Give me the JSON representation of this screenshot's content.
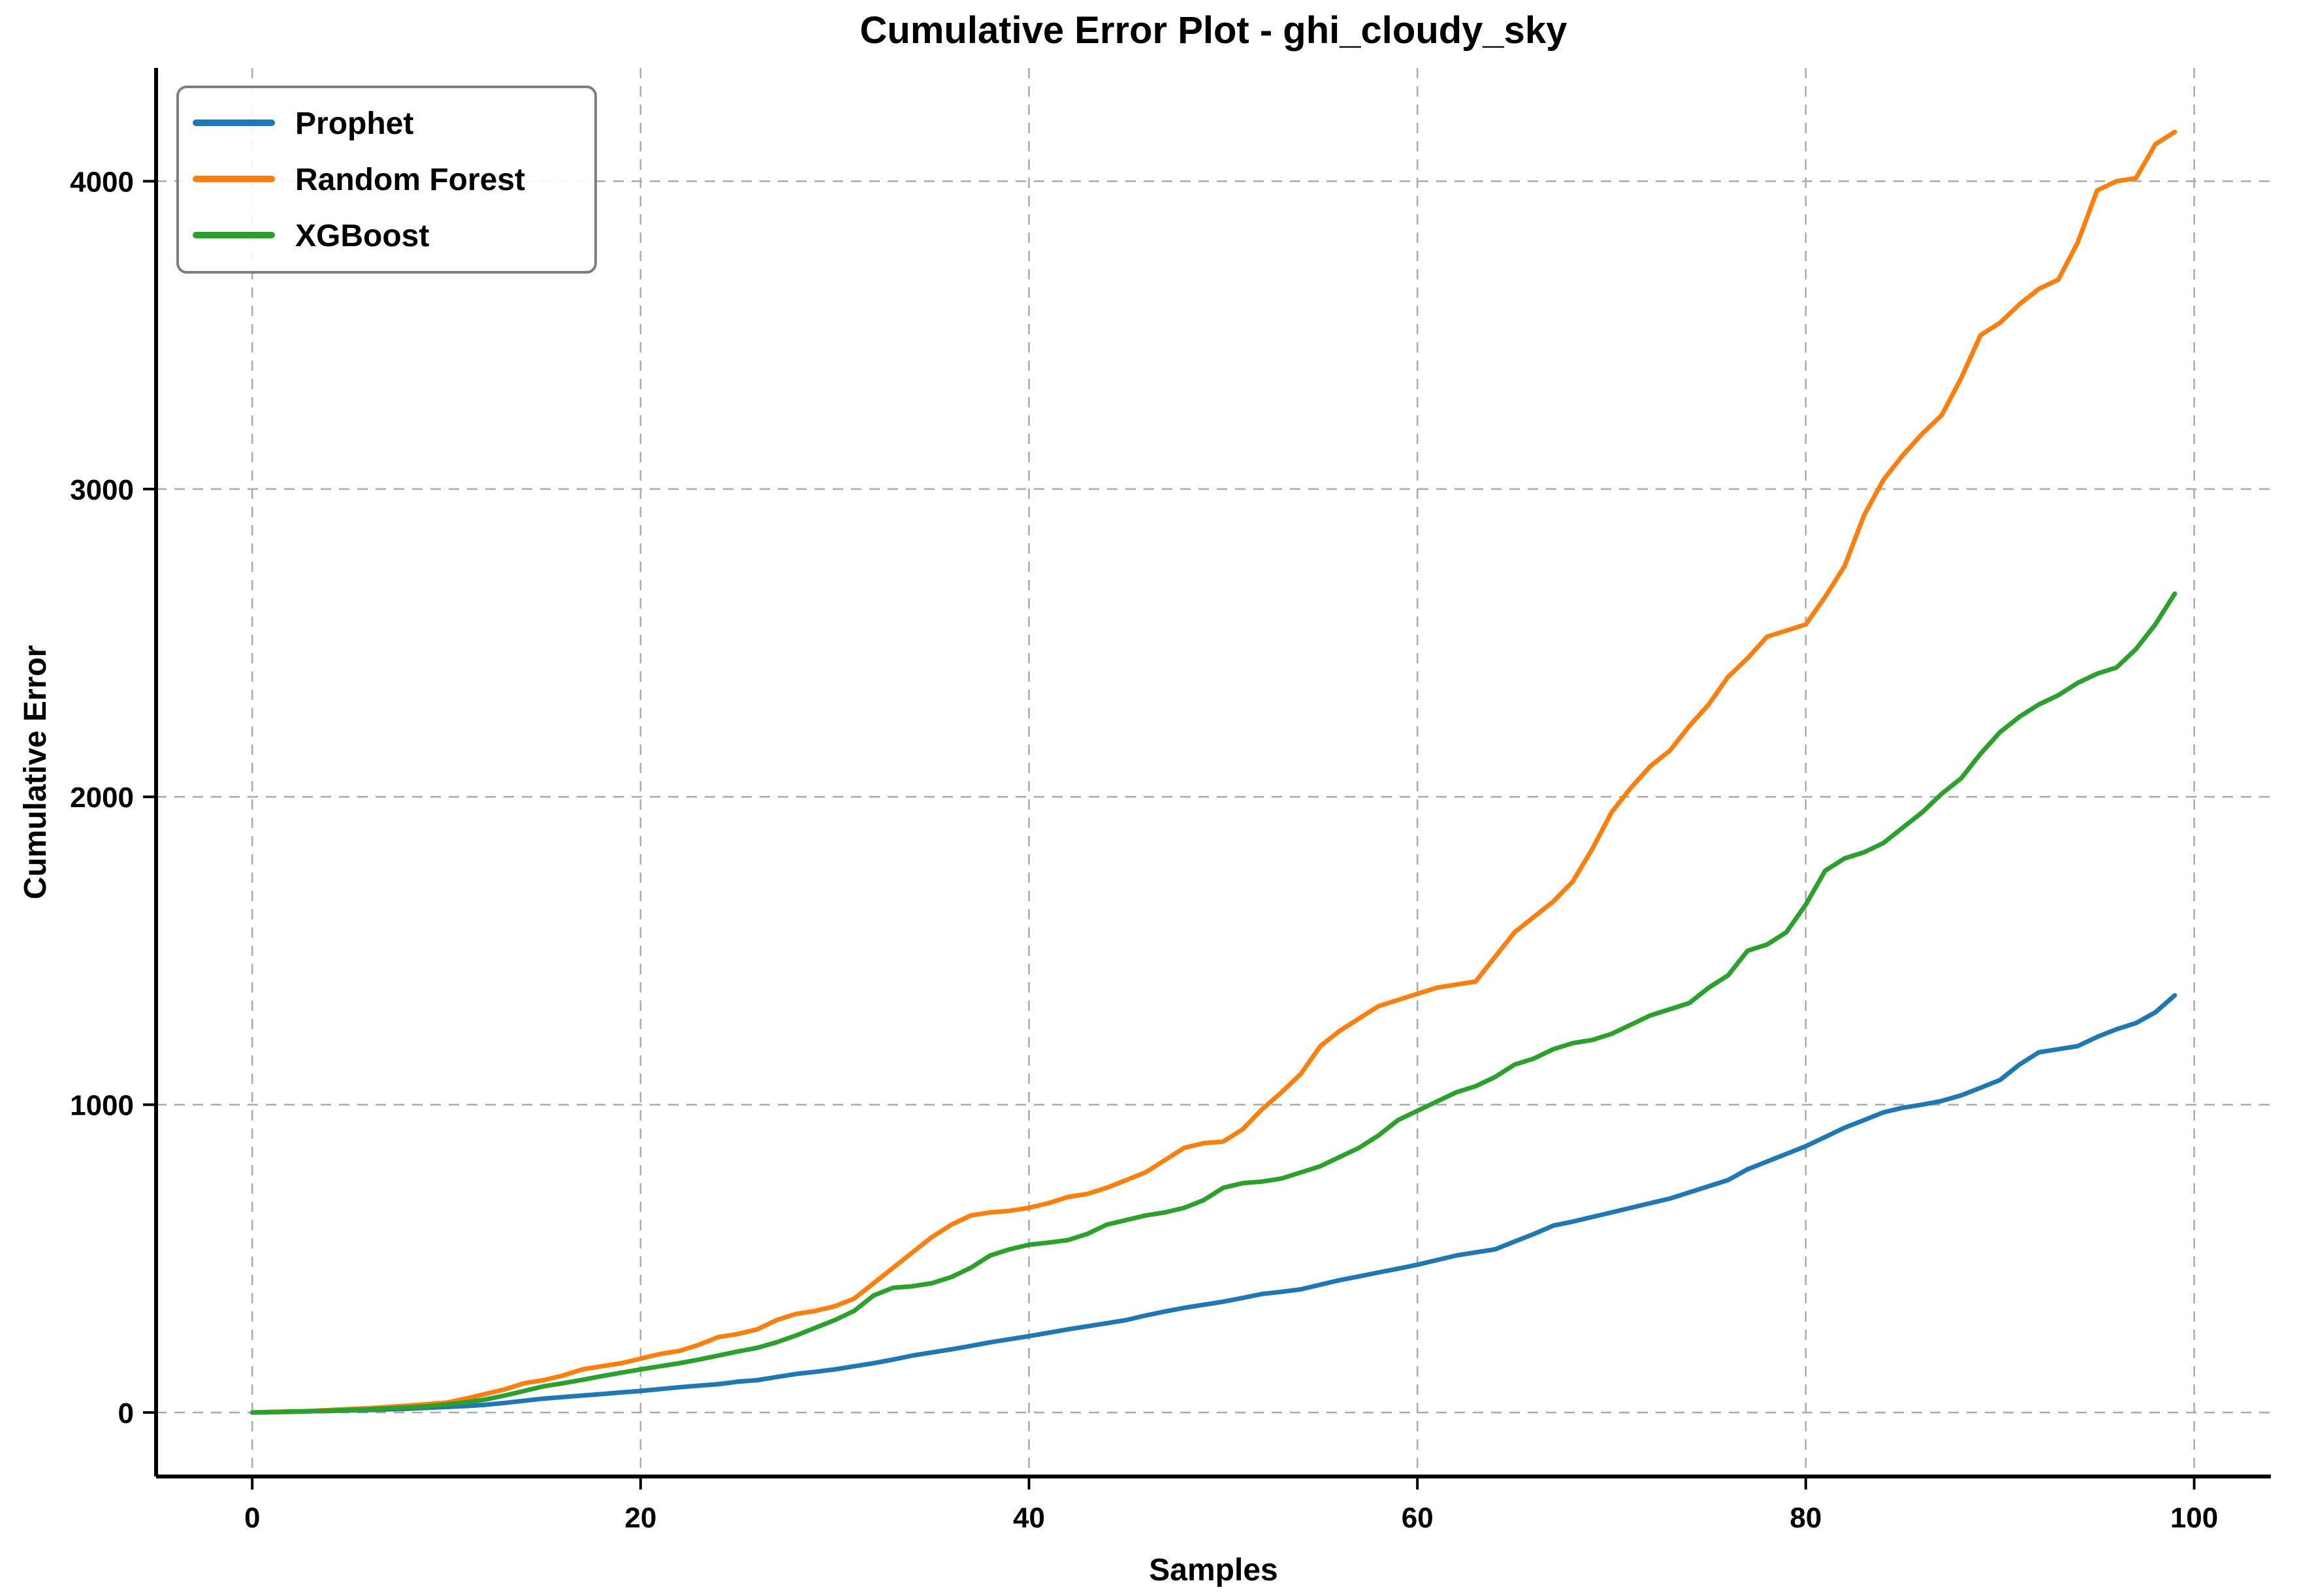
{
  "chart_data": {
    "type": "line",
    "title": "Cumulative Error Plot - ghi_cloudy_sky",
    "xlabel": "Samples",
    "ylabel": "Cumulative Error",
    "xlim": [
      -4.95,
      103.95
    ],
    "ylim": [
      -208,
      4368
    ],
    "xticks": [
      0,
      20,
      40,
      60,
      80,
      100
    ],
    "yticks": [
      0,
      1000,
      2000,
      3000,
      4000
    ],
    "grid": "both, dashed, light gray",
    "legend_position": "upper left",
    "x": [
      0,
      1,
      2,
      3,
      4,
      5,
      6,
      7,
      8,
      9,
      10,
      11,
      12,
      13,
      14,
      15,
      16,
      17,
      18,
      19,
      20,
      21,
      22,
      23,
      24,
      25,
      26,
      27,
      28,
      29,
      30,
      31,
      32,
      33,
      34,
      35,
      36,
      37,
      38,
      39,
      40,
      41,
      42,
      43,
      44,
      45,
      46,
      47,
      48,
      49,
      50,
      51,
      52,
      53,
      54,
      55,
      56,
      57,
      58,
      59,
      60,
      61,
      62,
      63,
      64,
      65,
      66,
      67,
      68,
      69,
      70,
      71,
      72,
      73,
      74,
      75,
      76,
      77,
      78,
      79,
      80,
      81,
      82,
      83,
      84,
      85,
      86,
      87,
      88,
      89,
      90,
      91,
      92,
      93,
      94,
      95,
      96,
      97,
      98,
      99
    ],
    "series": [
      {
        "name": "Prophet",
        "color": "#1f77b4",
        "values": [
          0,
          1,
          2,
          4,
          5,
          7,
          8,
          10,
          12,
          15,
          18,
          21,
          25,
          31,
          38,
          45,
          50,
          55,
          60,
          65,
          70,
          76,
          82,
          87,
          92,
          100,
          105,
          115,
          125,
          132,
          140,
          150,
          160,
          172,
          185,
          195,
          205,
          216,
          228,
          238,
          248,
          259,
          270,
          280,
          290,
          300,
          315,
          328,
          340,
          350,
          360,
          372,
          385,
          392,
          400,
          415,
          430,
          442,
          455,
          467,
          480,
          495,
          510,
          520,
          530,
          555,
          580,
          607,
          620,
          635,
          650,
          665,
          680,
          695,
          715,
          735,
          755,
          790,
          815,
          840,
          865,
          895,
          925,
          950,
          975,
          990,
          1000,
          1012,
          1030,
          1055,
          1080,
          1130,
          1170,
          1180,
          1190,
          1220,
          1245,
          1265,
          1300,
          1355
        ]
      },
      {
        "name": "Random Forest",
        "color": "#ff7f0e",
        "values": [
          0,
          2,
          3,
          5,
          8,
          11,
          14,
          18,
          22,
          27,
          32,
          45,
          60,
          75,
          95,
          105,
          120,
          140,
          150,
          160,
          175,
          190,
          200,
          220,
          245,
          255,
          270,
          300,
          320,
          330,
          345,
          370,
          420,
          470,
          520,
          570,
          610,
          640,
          650,
          655,
          665,
          680,
          700,
          710,
          730,
          755,
          780,
          820,
          860,
          875,
          880,
          920,
          985,
          1040,
          1100,
          1190,
          1240,
          1280,
          1320,
          1340,
          1360,
          1380,
          1390,
          1400,
          1480,
          1560,
          1610,
          1660,
          1725,
          1830,
          1950,
          2030,
          2100,
          2150,
          2230,
          2300,
          2390,
          2450,
          2520,
          2540,
          2560,
          2650,
          2750,
          2915,
          3030,
          3110,
          3180,
          3240,
          3360,
          3500,
          3540,
          3600,
          3650,
          3680,
          3800,
          3970,
          4000,
          4010,
          4120,
          4160
        ]
      },
      {
        "name": "XGBoost",
        "color": "#2ca02c",
        "values": [
          0,
          1,
          3,
          4,
          6,
          8,
          10,
          13,
          16,
          20,
          26,
          33,
          42,
          55,
          70,
          85,
          95,
          106,
          118,
          129,
          140,
          150,
          160,
          172,
          185,
          198,
          210,
          228,
          250,
          275,
          300,
          330,
          380,
          405,
          410,
          420,
          440,
          470,
          510,
          530,
          545,
          552,
          560,
          580,
          610,
          625,
          640,
          650,
          665,
          690,
          730,
          745,
          750,
          760,
          780,
          800,
          830,
          860,
          900,
          950,
          980,
          1010,
          1040,
          1060,
          1090,
          1130,
          1150,
          1180,
          1200,
          1210,
          1230,
          1260,
          1290,
          1310,
          1330,
          1380,
          1420,
          1500,
          1520,
          1560,
          1650,
          1760,
          1800,
          1820,
          1850,
          1900,
          1950,
          2010,
          2060,
          2140,
          2210,
          2260,
          2300,
          2330,
          2370,
          2400,
          2420,
          2480,
          2560,
          2660
        ]
      }
    ]
  },
  "legend": {
    "items": [
      {
        "label": "Prophet",
        "color": "#1f77b4"
      },
      {
        "label": "Random Forest",
        "color": "#ff7f0e"
      },
      {
        "label": "XGBoost",
        "color": "#2ca02c"
      }
    ]
  },
  "style_colors": {
    "grid": "#aaaaaa",
    "spine": "#000000",
    "legend_border": "#7f7f7f",
    "background": "#ffffff"
  }
}
